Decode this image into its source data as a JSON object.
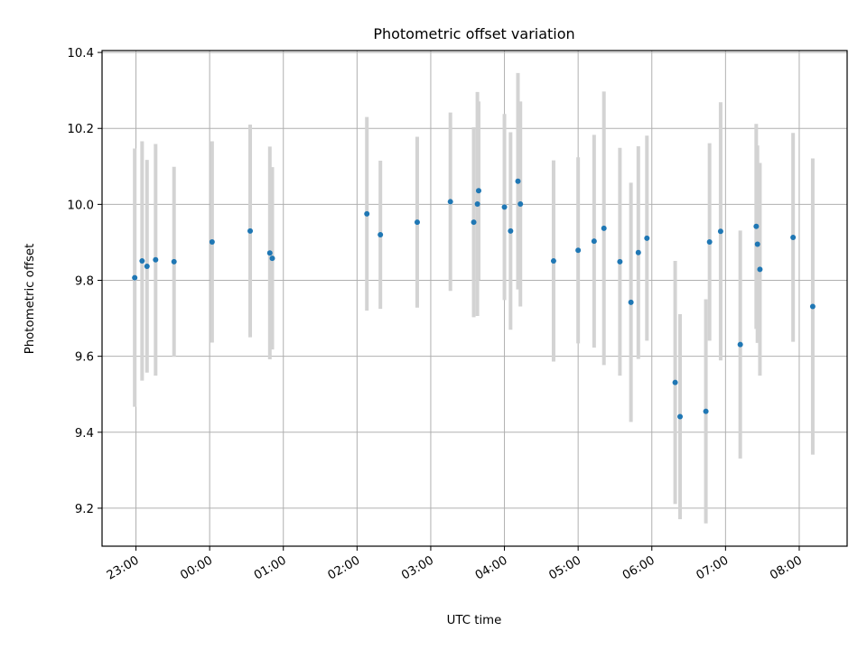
{
  "chart_data": {
    "type": "scatter",
    "title": "Photometric offset variation",
    "xlabel": "UTC time",
    "ylabel": "Photometric offset",
    "x_tick_labels": [
      "23:00",
      "00:00",
      "01:00",
      "02:00",
      "03:00",
      "04:00",
      "05:00",
      "06:00",
      "07:00",
      "08:00"
    ],
    "y_tick_labels": [
      "9.2",
      "9.4",
      "9.6",
      "9.8",
      "10.0",
      "10.2",
      "10.4"
    ],
    "y_ticks": [
      9.2,
      9.4,
      9.6,
      9.8,
      10.0,
      10.2,
      10.4
    ],
    "xlim_hours_since_23h": [
      -0.46,
      9.65
    ],
    "ylim": [
      9.1,
      10.405
    ],
    "grid": true,
    "marker_color": "#1f77b4",
    "errorbar_color": "#d3d3d3",
    "points": [
      {
        "t": "22:59",
        "y": 9.807,
        "err": 0.34
      },
      {
        "t": "23:05",
        "y": 9.851,
        "err": 0.315
      },
      {
        "t": "23:09",
        "y": 9.837,
        "err": 0.28
      },
      {
        "t": "23:16",
        "y": 9.854,
        "err": 0.305
      },
      {
        "t": "23:31",
        "y": 9.849,
        "err": 0.25
      },
      {
        "t": "00:02",
        "y": 9.901,
        "err": 0.265
      },
      {
        "t": "00:33",
        "y": 9.93,
        "err": 0.28
      },
      {
        "t": "00:49",
        "y": 9.872,
        "err": 0.28
      },
      {
        "t": "00:51",
        "y": 9.858,
        "err": 0.24
      },
      {
        "t": "02:08",
        "y": 9.975,
        "err": 0.255
      },
      {
        "t": "02:19",
        "y": 9.92,
        "err": 0.195
      },
      {
        "t": "02:49",
        "y": 9.953,
        "err": 0.225
      },
      {
        "t": "03:16",
        "y": 10.007,
        "err": 0.235
      },
      {
        "t": "03:35",
        "y": 9.953,
        "err": 0.25
      },
      {
        "t": "03:38",
        "y": 10.001,
        "err": 0.295
      },
      {
        "t": "03:39",
        "y": 10.036,
        "err": 0.235
      },
      {
        "t": "04:00",
        "y": 9.993,
        "err": 0.245
      },
      {
        "t": "04:05",
        "y": 9.93,
        "err": 0.26
      },
      {
        "t": "04:11",
        "y": 10.061,
        "err": 0.285
      },
      {
        "t": "04:13",
        "y": 10.001,
        "err": 0.27
      },
      {
        "t": "04:40",
        "y": 9.851,
        "err": 0.265
      },
      {
        "t": "05:00",
        "y": 9.879,
        "err": 0.245
      },
      {
        "t": "05:13",
        "y": 9.903,
        "err": 0.28
      },
      {
        "t": "05:21",
        "y": 9.937,
        "err": 0.36
      },
      {
        "t": "05:34",
        "y": 9.849,
        "err": 0.3
      },
      {
        "t": "05:43",
        "y": 9.742,
        "err": 0.315
      },
      {
        "t": "05:49",
        "y": 9.873,
        "err": 0.28
      },
      {
        "t": "05:56",
        "y": 9.911,
        "err": 0.27
      },
      {
        "t": "06:19",
        "y": 9.531,
        "err": 0.32
      },
      {
        "t": "06:23",
        "y": 9.441,
        "err": 0.27
      },
      {
        "t": "06:44",
        "y": 9.455,
        "err": 0.295
      },
      {
        "t": "06:47",
        "y": 9.901,
        "err": 0.26
      },
      {
        "t": "06:56",
        "y": 9.929,
        "err": 0.34
      },
      {
        "t": "07:12",
        "y": 9.631,
        "err": 0.3
      },
      {
        "t": "07:25",
        "y": 9.942,
        "err": 0.27
      },
      {
        "t": "07:26",
        "y": 9.895,
        "err": 0.26
      },
      {
        "t": "07:28",
        "y": 9.829,
        "err": 0.28
      },
      {
        "t": "07:55",
        "y": 9.913,
        "err": 0.275
      },
      {
        "t": "08:11",
        "y": 9.731,
        "err": 0.39
      }
    ]
  }
}
